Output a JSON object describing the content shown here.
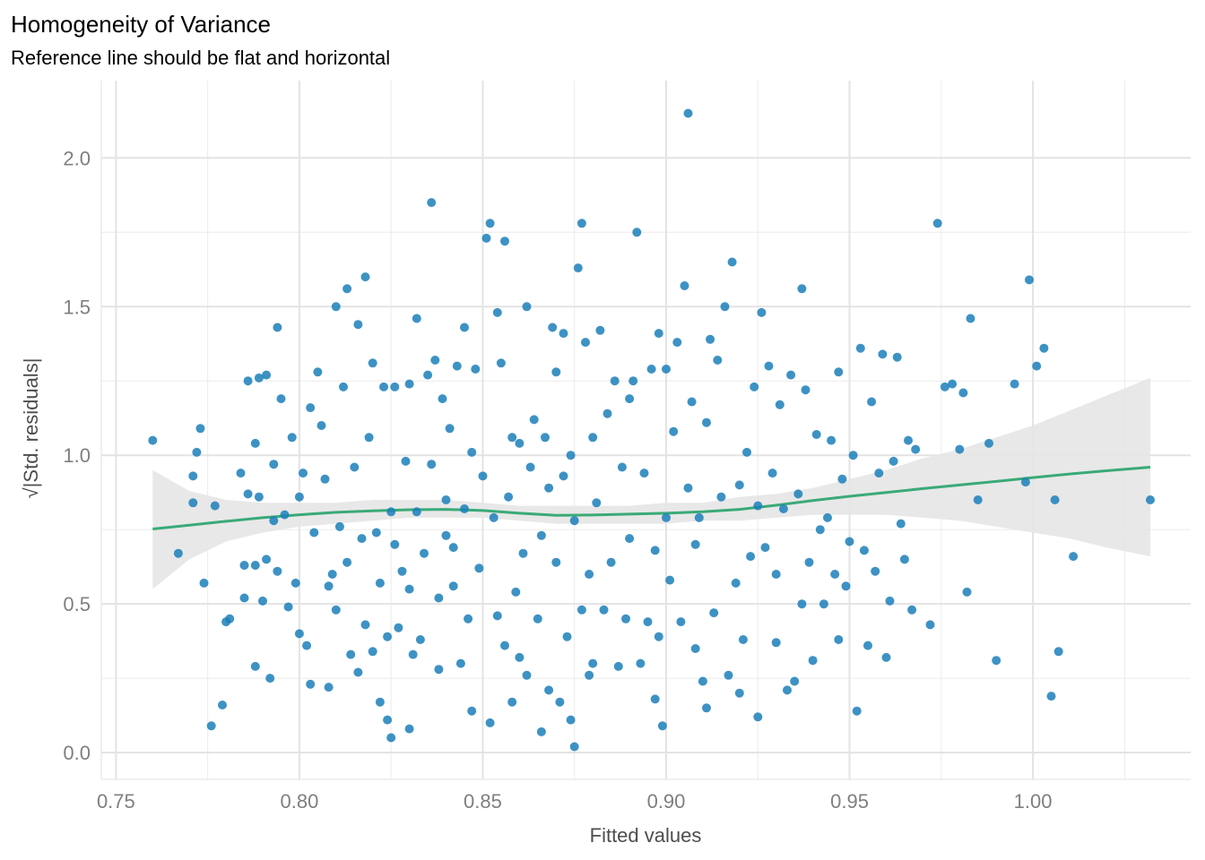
{
  "chart_data": {
    "type": "scatter",
    "title": "Homogeneity of Variance",
    "subtitle": "Reference line should be flat and horizontal",
    "xlabel": "Fitted values",
    "ylabel": "|Std. residuals|",
    "ylabel_radical": "√",
    "xlim": [
      0.746,
      1.043
    ],
    "ylim": [
      -0.09,
      2.26
    ],
    "x_ticks": [
      0.75,
      0.8,
      0.85,
      0.9,
      0.95,
      1.0
    ],
    "x_tick_labels": [
      "0.75",
      "0.80",
      "0.85",
      "0.90",
      "0.95",
      "1.00"
    ],
    "y_ticks": [
      0.0,
      0.5,
      1.0,
      1.5,
      2.0
    ],
    "y_tick_labels": [
      "0.0",
      "0.5",
      "1.0",
      "1.5",
      "2.0"
    ],
    "grid": true,
    "colors": {
      "points": "#1b7fba",
      "smooth_line": "#3aaa78",
      "confidence_band": "#e6e6e6",
      "grid": "#ebebeb"
    },
    "points": [
      [
        0.76,
        1.05
      ],
      [
        0.767,
        0.67
      ],
      [
        0.771,
        0.93
      ],
      [
        0.771,
        0.84
      ],
      [
        0.772,
        1.01
      ],
      [
        0.773,
        1.09
      ],
      [
        0.774,
        0.57
      ],
      [
        0.776,
        0.09
      ],
      [
        0.777,
        0.83
      ],
      [
        0.779,
        0.16
      ],
      [
        0.78,
        0.44
      ],
      [
        0.781,
        0.45
      ],
      [
        0.784,
        0.94
      ],
      [
        0.785,
        0.52
      ],
      [
        0.785,
        0.63
      ],
      [
        0.786,
        1.25
      ],
      [
        0.786,
        0.87
      ],
      [
        0.788,
        0.29
      ],
      [
        0.788,
        1.04
      ],
      [
        0.788,
        0.63
      ],
      [
        0.789,
        0.86
      ],
      [
        0.789,
        1.26
      ],
      [
        0.79,
        0.51
      ],
      [
        0.791,
        1.27
      ],
      [
        0.791,
        0.65
      ],
      [
        0.792,
        0.25
      ],
      [
        0.793,
        0.97
      ],
      [
        0.793,
        0.78
      ],
      [
        0.794,
        1.43
      ],
      [
        0.794,
        0.61
      ],
      [
        0.795,
        1.19
      ],
      [
        0.796,
        0.8
      ],
      [
        0.797,
        0.49
      ],
      [
        0.798,
        1.06
      ],
      [
        0.799,
        0.57
      ],
      [
        0.8,
        0.4
      ],
      [
        0.8,
        0.86
      ],
      [
        0.801,
        0.94
      ],
      [
        0.802,
        0.36
      ],
      [
        0.803,
        1.16
      ],
      [
        0.804,
        0.74
      ],
      [
        0.805,
        1.28
      ],
      [
        0.806,
        1.1
      ],
      [
        0.807,
        0.92
      ],
      [
        0.808,
        0.56
      ],
      [
        0.808,
        0.22
      ],
      [
        0.809,
        0.6
      ],
      [
        0.81,
        0.48
      ],
      [
        0.81,
        1.5
      ],
      [
        0.811,
        0.76
      ],
      [
        0.812,
        1.23
      ],
      [
        0.813,
        1.56
      ],
      [
        0.813,
        0.64
      ],
      [
        0.814,
        0.33
      ],
      [
        0.815,
        0.96
      ],
      [
        0.816,
        1.44
      ],
      [
        0.816,
        0.27
      ],
      [
        0.817,
        0.72
      ],
      [
        0.818,
        1.6
      ],
      [
        0.819,
        1.06
      ],
      [
        0.82,
        0.34
      ],
      [
        0.82,
        1.31
      ],
      [
        0.821,
        0.74
      ],
      [
        0.822,
        0.17
      ],
      [
        0.822,
        0.57
      ],
      [
        0.823,
        1.23
      ],
      [
        0.824,
        0.11
      ],
      [
        0.824,
        0.39
      ],
      [
        0.825,
        0.05
      ],
      [
        0.825,
        0.81
      ],
      [
        0.826,
        1.23
      ],
      [
        0.826,
        0.7
      ],
      [
        0.827,
        0.42
      ],
      [
        0.828,
        0.61
      ],
      [
        0.829,
        0.98
      ],
      [
        0.83,
        0.55
      ],
      [
        0.83,
        1.24
      ],
      [
        0.831,
        0.33
      ],
      [
        0.832,
        1.46
      ],
      [
        0.832,
        0.81
      ],
      [
        0.833,
        0.38
      ],
      [
        0.834,
        0.67
      ],
      [
        0.835,
        1.27
      ],
      [
        0.836,
        1.85
      ],
      [
        0.836,
        0.97
      ],
      [
        0.837,
        1.32
      ],
      [
        0.838,
        0.52
      ],
      [
        0.838,
        0.28
      ],
      [
        0.839,
        1.19
      ],
      [
        0.84,
        0.85
      ],
      [
        0.84,
        0.73
      ],
      [
        0.841,
        1.09
      ],
      [
        0.842,
        0.56
      ],
      [
        0.843,
        1.3
      ],
      [
        0.844,
        0.3
      ],
      [
        0.845,
        1.43
      ],
      [
        0.845,
        0.82
      ],
      [
        0.846,
        0.45
      ],
      [
        0.847,
        0.14
      ],
      [
        0.847,
        1.01
      ],
      [
        0.848,
        1.29
      ],
      [
        0.849,
        0.62
      ],
      [
        0.85,
        0.93
      ],
      [
        0.851,
        1.73
      ],
      [
        0.852,
        0.1
      ],
      [
        0.852,
        1.78
      ],
      [
        0.853,
        0.79
      ],
      [
        0.854,
        0.46
      ],
      [
        0.854,
        1.48
      ],
      [
        0.855,
        1.31
      ],
      [
        0.856,
        0.36
      ],
      [
        0.856,
        1.72
      ],
      [
        0.857,
        0.86
      ],
      [
        0.858,
        1.06
      ],
      [
        0.859,
        0.54
      ],
      [
        0.86,
        0.32
      ],
      [
        0.86,
        1.04
      ],
      [
        0.861,
        0.67
      ],
      [
        0.862,
        1.5
      ],
      [
        0.862,
        0.26
      ],
      [
        0.863,
        0.96
      ],
      [
        0.864,
        1.12
      ],
      [
        0.865,
        0.45
      ],
      [
        0.866,
        0.73
      ],
      [
        0.867,
        1.06
      ],
      [
        0.868,
        0.21
      ],
      [
        0.868,
        0.89
      ],
      [
        0.869,
        1.43
      ],
      [
        0.87,
        0.64
      ],
      [
        0.87,
        1.28
      ],
      [
        0.871,
        0.17
      ],
      [
        0.872,
        0.93
      ],
      [
        0.872,
        1.41
      ],
      [
        0.873,
        0.39
      ],
      [
        0.874,
        0.11
      ],
      [
        0.874,
        1.0
      ],
      [
        0.875,
        0.78
      ],
      [
        0.875,
        0.02
      ],
      [
        0.876,
        1.63
      ],
      [
        0.877,
        0.48
      ],
      [
        0.877,
        1.78
      ],
      [
        0.878,
        1.38
      ],
      [
        0.879,
        0.6
      ],
      [
        0.88,
        1.06
      ],
      [
        0.88,
        0.3
      ],
      [
        0.881,
        0.84
      ],
      [
        0.882,
        1.42
      ],
      [
        0.883,
        0.48
      ],
      [
        0.884,
        1.14
      ],
      [
        0.885,
        0.64
      ],
      [
        0.886,
        1.25
      ],
      [
        0.887,
        0.29
      ],
      [
        0.888,
        0.96
      ],
      [
        0.889,
        0.45
      ],
      [
        0.89,
        1.19
      ],
      [
        0.89,
        0.72
      ],
      [
        0.891,
        1.25
      ],
      [
        0.892,
        1.75
      ],
      [
        0.893,
        0.3
      ],
      [
        0.894,
        0.94
      ],
      [
        0.895,
        0.44
      ],
      [
        0.896,
        1.29
      ],
      [
        0.897,
        0.68
      ],
      [
        0.898,
        1.41
      ],
      [
        0.898,
        0.39
      ],
      [
        0.899,
        0.09
      ],
      [
        0.9,
        1.29
      ],
      [
        0.9,
        0.79
      ],
      [
        0.901,
        0.58
      ],
      [
        0.902,
        1.08
      ],
      [
        0.903,
        1.38
      ],
      [
        0.904,
        0.44
      ],
      [
        0.905,
        1.57
      ],
      [
        0.906,
        2.15
      ],
      [
        0.906,
        0.89
      ],
      [
        0.907,
        1.18
      ],
      [
        0.908,
        0.35
      ],
      [
        0.908,
        0.7
      ],
      [
        0.909,
        0.79
      ],
      [
        0.91,
        0.24
      ],
      [
        0.911,
        1.11
      ],
      [
        0.912,
        1.39
      ],
      [
        0.913,
        0.47
      ],
      [
        0.914,
        1.32
      ],
      [
        0.915,
        0.86
      ],
      [
        0.916,
        1.5
      ],
      [
        0.917,
        0.26
      ],
      [
        0.918,
        1.65
      ],
      [
        0.919,
        0.57
      ],
      [
        0.92,
        0.2
      ],
      [
        0.92,
        0.9
      ],
      [
        0.921,
        0.38
      ],
      [
        0.922,
        1.01
      ],
      [
        0.923,
        0.66
      ],
      [
        0.924,
        1.23
      ],
      [
        0.925,
        0.83
      ],
      [
        0.926,
        1.48
      ],
      [
        0.927,
        0.69
      ],
      [
        0.928,
        1.3
      ],
      [
        0.929,
        0.94
      ],
      [
        0.93,
        0.37
      ],
      [
        0.93,
        0.6
      ],
      [
        0.931,
        1.17
      ],
      [
        0.932,
        0.82
      ],
      [
        0.933,
        0.21
      ],
      [
        0.934,
        1.27
      ],
      [
        0.935,
        0.24
      ],
      [
        0.936,
        0.87
      ],
      [
        0.937,
        1.56
      ],
      [
        0.937,
        0.5
      ],
      [
        0.938,
        1.22
      ],
      [
        0.939,
        0.64
      ],
      [
        0.94,
        0.31
      ],
      [
        0.941,
        1.07
      ],
      [
        0.942,
        0.75
      ],
      [
        0.943,
        0.5
      ],
      [
        0.944,
        0.79
      ],
      [
        0.945,
        1.05
      ],
      [
        0.946,
        0.6
      ],
      [
        0.947,
        1.28
      ],
      [
        0.947,
        0.38
      ],
      [
        0.948,
        0.92
      ],
      [
        0.949,
        0.56
      ],
      [
        0.95,
        0.71
      ],
      [
        0.951,
        1.0
      ],
      [
        0.952,
        0.14
      ],
      [
        0.953,
        1.36
      ],
      [
        0.954,
        0.68
      ],
      [
        0.955,
        0.36
      ],
      [
        0.956,
        1.18
      ],
      [
        0.957,
        0.61
      ],
      [
        0.958,
        0.94
      ],
      [
        0.959,
        1.34
      ],
      [
        0.96,
        0.32
      ],
      [
        0.961,
        0.51
      ],
      [
        0.962,
        0.98
      ],
      [
        0.963,
        1.33
      ],
      [
        0.964,
        0.77
      ],
      [
        0.965,
        0.65
      ],
      [
        0.966,
        1.05
      ],
      [
        0.967,
        0.48
      ],
      [
        0.968,
        1.02
      ],
      [
        0.972,
        0.43
      ],
      [
        0.974,
        1.78
      ],
      [
        0.976,
        1.23
      ],
      [
        0.978,
        1.24
      ],
      [
        0.98,
        1.02
      ],
      [
        0.981,
        1.21
      ],
      [
        0.982,
        0.54
      ],
      [
        0.983,
        1.46
      ],
      [
        0.985,
        0.85
      ],
      [
        0.988,
        1.04
      ],
      [
        0.99,
        0.31
      ],
      [
        0.995,
        1.24
      ],
      [
        0.998,
        0.91
      ],
      [
        0.999,
        1.59
      ],
      [
        1.001,
        1.3
      ],
      [
        1.003,
        1.36
      ],
      [
        1.005,
        0.19
      ],
      [
        1.006,
        0.85
      ],
      [
        1.007,
        0.34
      ],
      [
        1.011,
        0.66
      ],
      [
        1.032,
        0.85
      ],
      [
        0.803,
        0.23
      ],
      [
        0.818,
        0.43
      ],
      [
        0.83,
        0.08
      ],
      [
        0.842,
        0.69
      ],
      [
        0.858,
        0.17
      ],
      [
        0.866,
        0.07
      ],
      [
        0.879,
        0.26
      ],
      [
        0.897,
        0.18
      ],
      [
        0.911,
        0.15
      ],
      [
        0.925,
        0.12
      ]
    ],
    "smooth_line": [
      [
        0.76,
        0.752
      ],
      [
        0.77,
        0.765
      ],
      [
        0.78,
        0.778
      ],
      [
        0.79,
        0.79
      ],
      [
        0.8,
        0.8
      ],
      [
        0.81,
        0.808
      ],
      [
        0.82,
        0.813
      ],
      [
        0.83,
        0.817
      ],
      [
        0.84,
        0.818
      ],
      [
        0.85,
        0.814
      ],
      [
        0.86,
        0.805
      ],
      [
        0.87,
        0.798
      ],
      [
        0.88,
        0.799
      ],
      [
        0.89,
        0.802
      ],
      [
        0.9,
        0.805
      ],
      [
        0.91,
        0.81
      ],
      [
        0.92,
        0.818
      ],
      [
        0.93,
        0.832
      ],
      [
        0.94,
        0.848
      ],
      [
        0.95,
        0.862
      ],
      [
        0.96,
        0.875
      ],
      [
        0.97,
        0.888
      ],
      [
        0.98,
        0.9
      ],
      [
        0.99,
        0.912
      ],
      [
        1.0,
        0.925
      ],
      [
        1.01,
        0.937
      ],
      [
        1.02,
        0.948
      ],
      [
        1.032,
        0.96
      ]
    ],
    "band_lower": [
      [
        0.76,
        0.55
      ],
      [
        0.77,
        0.65
      ],
      [
        0.78,
        0.71
      ],
      [
        0.79,
        0.74
      ],
      [
        0.8,
        0.76
      ],
      [
        0.81,
        0.77
      ],
      [
        0.82,
        0.78
      ],
      [
        0.83,
        0.79
      ],
      [
        0.84,
        0.79
      ],
      [
        0.85,
        0.79
      ],
      [
        0.86,
        0.78
      ],
      [
        0.87,
        0.77
      ],
      [
        0.88,
        0.77
      ],
      [
        0.89,
        0.77
      ],
      [
        0.9,
        0.77
      ],
      [
        0.91,
        0.78
      ],
      [
        0.92,
        0.78
      ],
      [
        0.93,
        0.79
      ],
      [
        0.94,
        0.8
      ],
      [
        0.95,
        0.8
      ],
      [
        0.96,
        0.8
      ],
      [
        0.97,
        0.79
      ],
      [
        0.98,
        0.78
      ],
      [
        0.99,
        0.76
      ],
      [
        1.0,
        0.74
      ],
      [
        1.01,
        0.72
      ],
      [
        1.02,
        0.69
      ],
      [
        1.032,
        0.66
      ]
    ],
    "band_upper": [
      [
        0.76,
        0.95
      ],
      [
        0.77,
        0.88
      ],
      [
        0.78,
        0.85
      ],
      [
        0.79,
        0.84
      ],
      [
        0.8,
        0.84
      ],
      [
        0.81,
        0.84
      ],
      [
        0.82,
        0.85
      ],
      [
        0.83,
        0.85
      ],
      [
        0.84,
        0.85
      ],
      [
        0.85,
        0.84
      ],
      [
        0.86,
        0.83
      ],
      [
        0.87,
        0.83
      ],
      [
        0.88,
        0.83
      ],
      [
        0.89,
        0.83
      ],
      [
        0.9,
        0.84
      ],
      [
        0.91,
        0.84
      ],
      [
        0.92,
        0.86
      ],
      [
        0.93,
        0.87
      ],
      [
        0.94,
        0.89
      ],
      [
        0.95,
        0.92
      ],
      [
        0.96,
        0.95
      ],
      [
        0.97,
        0.99
      ],
      [
        0.98,
        1.02
      ],
      [
        0.99,
        1.06
      ],
      [
        1.0,
        1.1
      ],
      [
        1.01,
        1.15
      ],
      [
        1.02,
        1.2
      ],
      [
        1.032,
        1.26
      ]
    ]
  }
}
